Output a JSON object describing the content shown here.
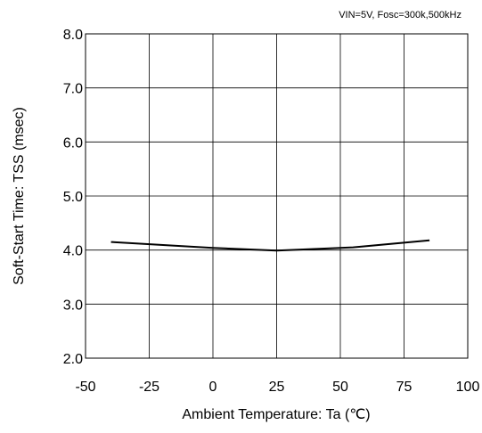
{
  "chart_data": {
    "type": "line",
    "title": "",
    "annotation": "VIN=5V, Fosc=300k,500kHz",
    "xlabel": "Ambient Temperature: Ta (℃)",
    "ylabel": "Soft-Start Time: TSS (msec)",
    "xlim": [
      -50,
      100
    ],
    "ylim": [
      2.0,
      8.0
    ],
    "xticks": [
      -50,
      -25,
      0,
      25,
      50,
      75,
      100
    ],
    "yticks": [
      2.0,
      3.0,
      4.0,
      5.0,
      6.0,
      7.0,
      8.0
    ],
    "xtick_labels": [
      "-50",
      "-25",
      "0",
      "25",
      "50",
      "75",
      "100"
    ],
    "ytick_labels": [
      "2.0",
      "3.0",
      "4.0",
      "5.0",
      "6.0",
      "7.0",
      "8.0"
    ],
    "grid": true,
    "series": [
      {
        "x": [
          -40,
          0,
          25,
          55,
          85
        ],
        "y": [
          4.15,
          4.04,
          3.99,
          4.05,
          4.18
        ],
        "color": "#000000"
      }
    ]
  }
}
